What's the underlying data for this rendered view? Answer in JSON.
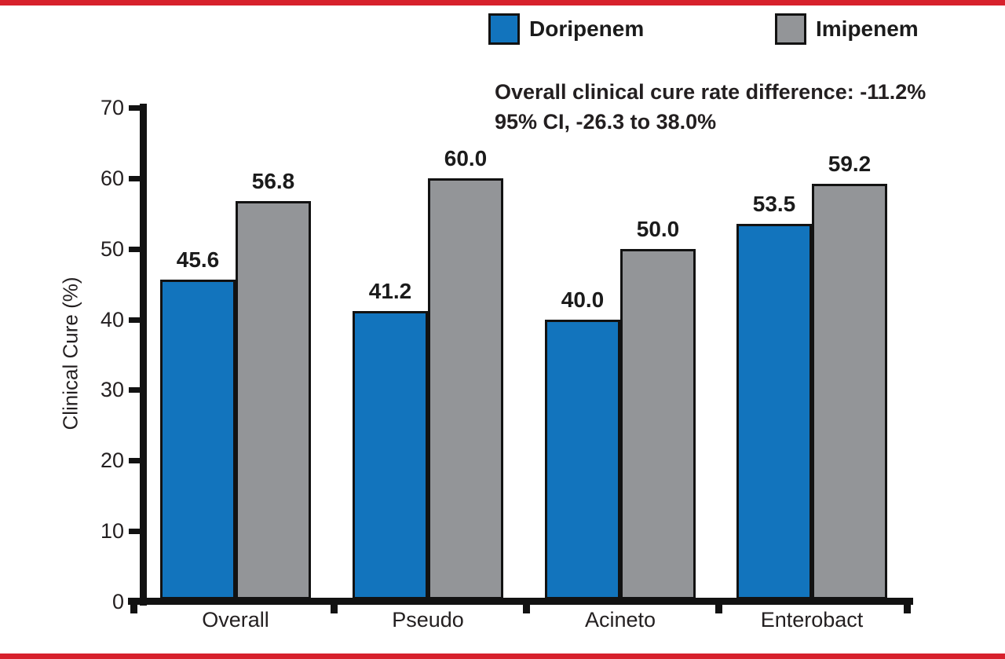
{
  "page": {
    "background": "#ffffff",
    "accent_red": "#d7212c",
    "ink": "#121212"
  },
  "legend": [
    {
      "label": "Doripenem",
      "color": "#1274bd"
    },
    {
      "label": "Imipenem",
      "color": "#939598"
    }
  ],
  "annotation": {
    "line1": "Overall clinical cure rate difference: -11.2%",
    "line2": "95% CI, -26.3 to 38.0%"
  },
  "chart_data": {
    "type": "bar",
    "title": "",
    "xlabel": "",
    "ylabel": "Clinical Cure (%)",
    "categories": [
      "Overall",
      "Pseudo",
      "Acineto",
      "Enterobact"
    ],
    "series": [
      {
        "name": "Doripenem",
        "color": "#1274bd",
        "values": [
          45.6,
          41.2,
          40.0,
          53.5
        ]
      },
      {
        "name": "Imipenem",
        "color": "#939598",
        "values": [
          56.8,
          60.0,
          50.0,
          59.2
        ]
      }
    ],
    "ylim": [
      0,
      70
    ],
    "yticks": [
      0,
      10,
      20,
      30,
      40,
      50,
      60,
      70
    ],
    "grid": false,
    "legend_position": "top",
    "value_labels": true,
    "value_label_format": "one_decimal"
  }
}
